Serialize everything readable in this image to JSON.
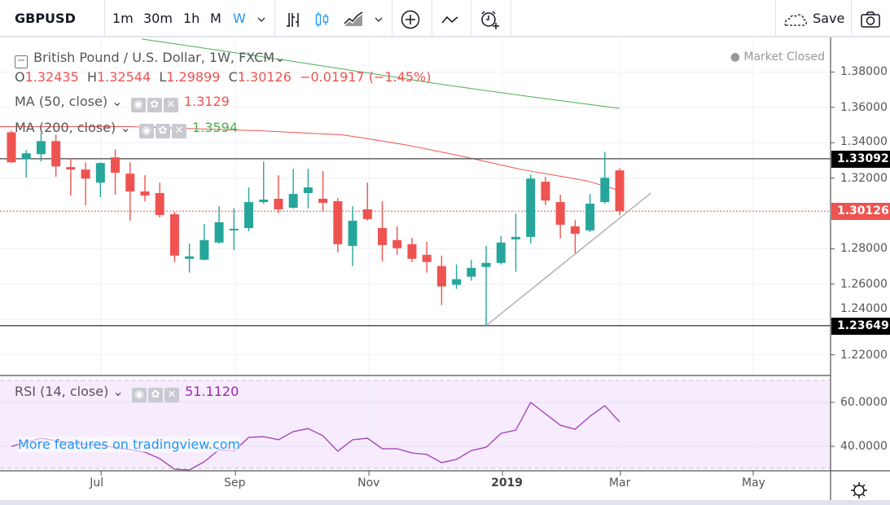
{
  "toolbar": {
    "symbol": "GBPUSD",
    "intervals": [
      "1m",
      "30m",
      "1h",
      "M",
      "W"
    ],
    "active_interval": "W",
    "save_label": "Save"
  },
  "legend": {
    "title": "British Pound / U.S. Dollar, 1W, FXCM",
    "o_label": "O",
    "o": "1.32435",
    "h_label": "H",
    "h": "1.32544",
    "l_label": "L",
    "l": "1.29899",
    "c_label": "C",
    "c": "1.30126",
    "change": "−0.01917 (−1.45%)",
    "ma50_label": "MA (50, close)",
    "ma50_value": "1.3129",
    "ma200_label": "MA (200, close)",
    "ma200_value": "1.3594",
    "market_status": "Market Closed",
    "rsi_label": "RSI (14, close)",
    "rsi_value": "51.1120"
  },
  "watermark": "More features on tradingview.com",
  "colors": {
    "up": "#26a69a",
    "down": "#ef5350",
    "ma50": "#ef5350",
    "ma200": "#4caf50",
    "rsi": "#ab47bc"
  },
  "chart_data": [
    {
      "type": "candlestick",
      "title": "British Pound / U.S. Dollar, 1W, FXCM",
      "ylim": [
        1.205,
        1.395
      ],
      "yticks": [
        "1.38000",
        "1.36000",
        "1.34000",
        "1.32000",
        "1.28000",
        "1.26000",
        "1.24000",
        "1.22000"
      ],
      "ytick_values": [
        1.38,
        1.36,
        1.34,
        1.32,
        1.28,
        1.26,
        1.24,
        1.22
      ],
      "xticks": [
        {
          "label": "Jul",
          "index": 7.05
        },
        {
          "label": "Sep",
          "index": 16.1
        },
        {
          "label": "Nov",
          "index": 25.1
        },
        {
          "label": "2019",
          "index": 34.1,
          "bold": true
        },
        {
          "label": "Mar",
          "index": 42.05
        },
        {
          "label": "May",
          "index": 51
        }
      ],
      "ohlc": [
        [
          1.3459,
          1.3468,
          1.3285,
          1.3289
        ],
        [
          1.3308,
          1.3358,
          1.3202,
          1.334
        ],
        [
          1.3335,
          1.3454,
          1.3294,
          1.3409
        ],
        [
          1.3409,
          1.3445,
          1.3207,
          1.3266
        ],
        [
          1.3262,
          1.3312,
          1.3101,
          1.3248
        ],
        [
          1.3248,
          1.3289,
          1.3046,
          1.3197
        ],
        [
          1.3174,
          1.3289,
          1.3092,
          1.3285
        ],
        [
          1.3317,
          1.3363,
          1.3106,
          1.323
        ],
        [
          1.3225,
          1.3289,
          1.2959,
          1.3124
        ],
        [
          1.3124,
          1.3216,
          1.3069,
          1.3101
        ],
        [
          1.3115,
          1.3174,
          1.2977,
          1.2991
        ],
        [
          1.2995,
          1.3009,
          1.2725,
          1.2761
        ],
        [
          1.2743,
          1.283,
          1.2665,
          1.2757
        ],
        [
          1.2738,
          1.294,
          1.2734,
          1.2849
        ],
        [
          1.2835,
          1.3041,
          1.283,
          1.295
        ],
        [
          1.2908,
          1.3028,
          1.2793,
          1.2913
        ],
        [
          1.2917,
          1.3147,
          1.2899,
          1.3064
        ],
        [
          1.3064,
          1.3294,
          1.3055,
          1.3078
        ],
        [
          1.3083,
          1.3216,
          1.3,
          1.3023
        ],
        [
          1.3032,
          1.3252,
          1.3028,
          1.311
        ],
        [
          1.3115,
          1.3252,
          1.3028,
          1.3147
        ],
        [
          1.3083,
          1.3239,
          1.3009,
          1.306
        ],
        [
          1.3069,
          1.3087,
          1.278,
          1.2826
        ],
        [
          1.2816,
          1.3041,
          1.2702,
          1.2959
        ],
        [
          1.3023,
          1.3174,
          1.2959,
          1.2968
        ],
        [
          1.2917,
          1.3069,
          1.2729,
          1.2821
        ],
        [
          1.2849,
          1.2927,
          1.2766,
          1.2803
        ],
        [
          1.2826,
          1.2862,
          1.2725,
          1.2743
        ],
        [
          1.2766,
          1.2839,
          1.2665,
          1.2725
        ],
        [
          1.2702,
          1.2761,
          1.2481,
          1.2587
        ],
        [
          1.2596,
          1.2711,
          1.2573,
          1.2628
        ],
        [
          1.2642,
          1.2738,
          1.2619,
          1.2692
        ],
        [
          1.2697,
          1.2816,
          1.2365,
          1.272
        ],
        [
          1.272,
          1.2871,
          1.2711,
          1.2835
        ],
        [
          1.2853,
          1.3,
          1.267,
          1.2867
        ],
        [
          1.2867,
          1.322,
          1.283,
          1.3197
        ],
        [
          1.3179,
          1.3207,
          1.3046,
          1.3073
        ],
        [
          1.3064,
          1.3106,
          1.2858,
          1.2936
        ],
        [
          1.2927,
          1.2963,
          1.2775,
          1.2885
        ],
        [
          1.2904,
          1.311,
          1.2894,
          1.3055
        ],
        [
          1.3064,
          1.3349,
          1.3055,
          1.3202
        ],
        [
          1.32435,
          1.32544,
          1.29899,
          1.30126
        ]
      ],
      "ma50": [
        [
          0.2,
          1.3491
        ],
        [
          8.9,
          1.3491
        ],
        [
          17.7,
          1.3468
        ],
        [
          23.2,
          1.3445
        ],
        [
          24.4,
          1.3431
        ],
        [
          27.7,
          1.3386
        ],
        [
          31,
          1.333
        ],
        [
          33.2,
          1.3289
        ],
        [
          35.4,
          1.3248
        ],
        [
          37.6,
          1.3216
        ],
        [
          39.8,
          1.3184
        ],
        [
          42,
          1.3129
        ]
      ],
      "ma200": [
        [
          9.8,
          1.3987
        ],
        [
          20,
          1.386
        ],
        [
          30,
          1.373
        ],
        [
          36,
          1.366
        ],
        [
          42,
          1.3594
        ]
      ],
      "hlines": [
        {
          "value": 1.33092,
          "label": "1.33092"
        },
        {
          "value": 1.23649,
          "label": "1.23649"
        }
      ],
      "last_price": {
        "value": 1.30126,
        "label": "1.30126"
      },
      "trendline": [
        [
          33,
          1.2365
        ],
        [
          44.1,
          1.3115
        ]
      ]
    },
    {
      "type": "line",
      "title": "RSI (14, close)",
      "ylim": [
        28.5,
        71.5
      ],
      "band": [
        30,
        70
      ],
      "yticks": [
        "60.0000",
        "40.0000"
      ],
      "ytick_values": [
        60,
        40
      ],
      "values": [
        40.0,
        41.9,
        43.7,
        42.6,
        41.5,
        41.0,
        40.5,
        39.5,
        38.5,
        37.4,
        34.4,
        29.6,
        29.3,
        33.0,
        38.5,
        37.8,
        44.1,
        44.4,
        43.0,
        46.7,
        48.1,
        44.8,
        37.8,
        43.0,
        43.7,
        38.9,
        38.9,
        37.0,
        36.3,
        32.6,
        34.1,
        38.1,
        39.6,
        45.9,
        47.4,
        60.0,
        54.8,
        49.6,
        47.8,
        53.7,
        58.5,
        51.1
      ]
    }
  ]
}
